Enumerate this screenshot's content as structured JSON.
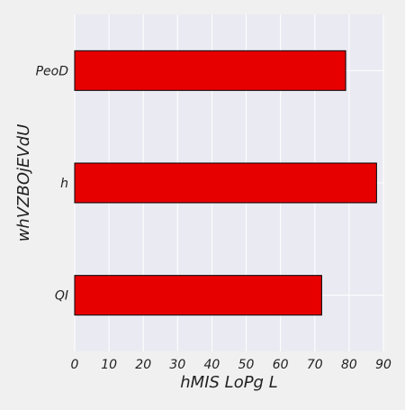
{
  "chart_data": {
    "type": "bar",
    "orientation": "horizontal",
    "categories": [
      "PeoD",
      "h",
      "QI"
    ],
    "values": [
      79,
      88,
      72
    ],
    "xlabel": "hMIS LoPg L",
    "ylabel": "whVZBOjEVdU",
    "xlim": [
      0,
      90
    ],
    "xticks": [
      0,
      10,
      20,
      30,
      40,
      50,
      60,
      70,
      80,
      90
    ],
    "grid": true,
    "legend": "none",
    "colors": {
      "bar": "#e60000",
      "bar_edge": "#000000",
      "plot_background": "#eaeaf2",
      "page_background": "#f0f0f0",
      "grid": "#ffffff"
    }
  }
}
